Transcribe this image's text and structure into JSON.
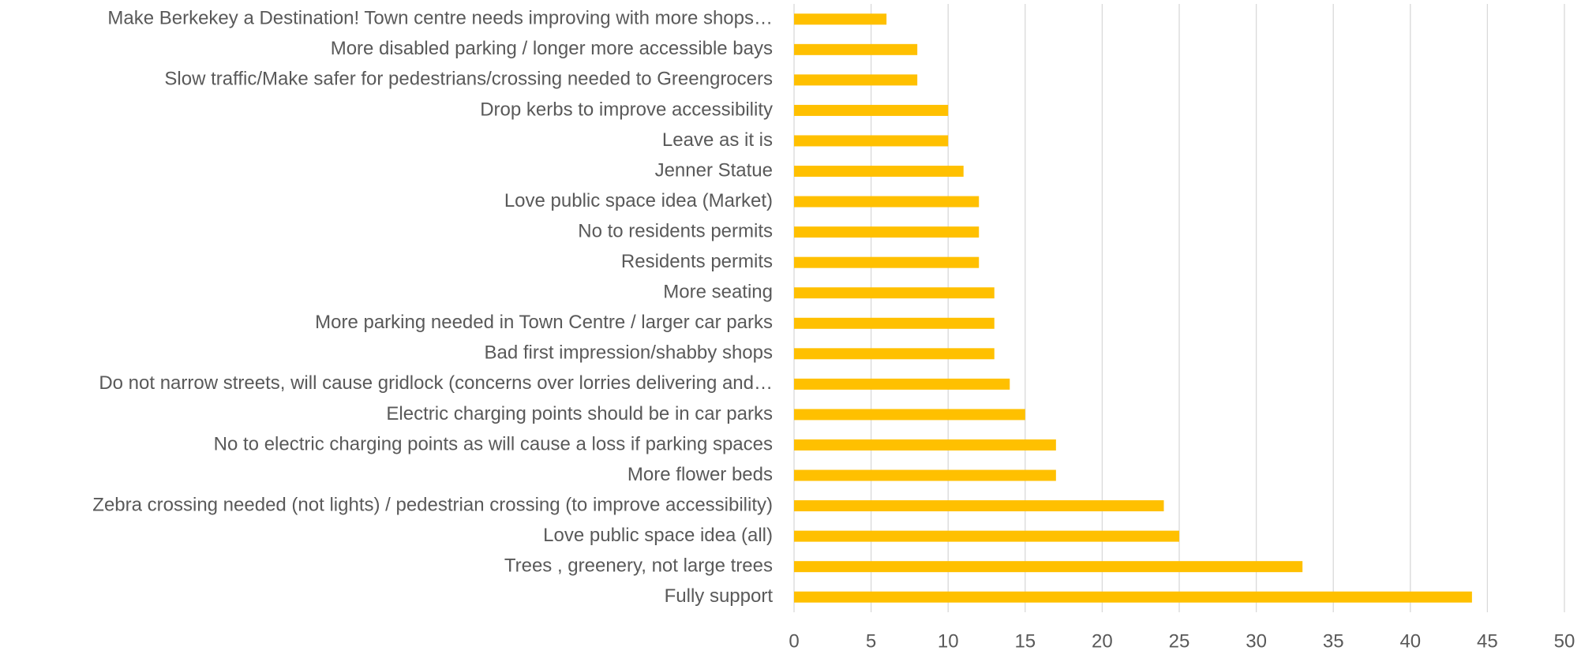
{
  "chart_data": {
    "type": "barh",
    "categories": [
      "Fully support",
      "Trees , greenery, not large trees",
      "Love public space idea (all)",
      "Zebra crossing needed (not lights) / pedestrian crossing (to improve accessibility)",
      "More flower beds",
      "No to electric charging points as will cause a loss if parking spaces",
      "Electric charging points should be in car parks",
      "Do not narrow streets, will cause gridlock (concerns over lorries delivering and…",
      "Bad first impression/shabby shops",
      "More parking needed in Town Centre / larger car parks",
      "More seating",
      "Residents permits",
      "No to residents permits",
      "Love public space idea (Market)",
      "Jenner Statue",
      "Leave as it is",
      "Drop kerbs to improve accessibility",
      "Slow traffic/Make safer for pedestrians/crossing needed to Greengrocers",
      "More disabled parking / longer more accessible bays",
      "Make Berkekey a Destination! Town centre needs improving with more shops…"
    ],
    "values": [
      44,
      33,
      25,
      24,
      17,
      17,
      15,
      14,
      13,
      13,
      13,
      12,
      12,
      12,
      11,
      10,
      10,
      8,
      8,
      6
    ],
    "color": "#ffc000",
    "xlim": [
      0,
      50
    ],
    "xticks": [
      0,
      5,
      10,
      15,
      20,
      25,
      30,
      35,
      40,
      45,
      50
    ],
    "grid": true
  }
}
